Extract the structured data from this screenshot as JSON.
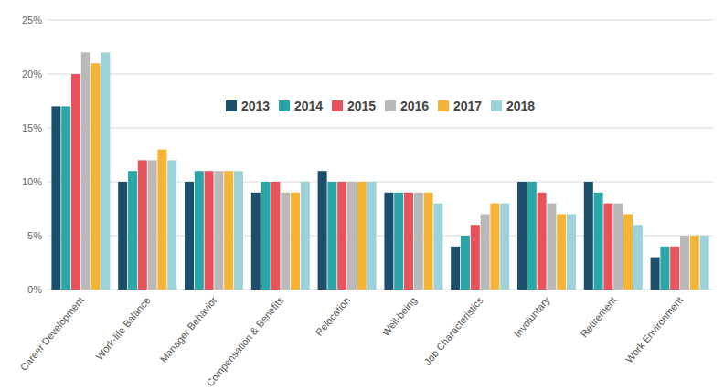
{
  "chart_data": {
    "type": "bar",
    "categories": [
      "Career Development",
      "Work-life Balance",
      "Manager Behavior",
      "Compensation & Benefits",
      "Relocation",
      "Well-being",
      "Job Characteristics",
      "Involuntary",
      "Retirement",
      "Work Environment"
    ],
    "series": [
      {
        "name": "2013",
        "color": "#1b4f6b",
        "values": [
          17,
          10,
          10,
          9,
          11,
          9,
          4,
          10,
          10,
          3
        ]
      },
      {
        "name": "2014",
        "color": "#2aa6a8",
        "values": [
          17,
          11,
          11,
          10,
          10,
          9,
          5,
          10,
          9,
          4
        ]
      },
      {
        "name": "2015",
        "color": "#e8525a",
        "values": [
          20,
          12,
          11,
          10,
          10,
          9,
          6,
          9,
          8,
          4
        ]
      },
      {
        "name": "2016",
        "color": "#b9b9b9",
        "values": [
          22,
          12,
          11,
          9,
          10,
          9,
          7,
          8,
          8,
          5
        ]
      },
      {
        "name": "2017",
        "color": "#f6b436",
        "values": [
          21,
          13,
          11,
          9,
          10,
          9,
          8,
          7,
          7,
          5
        ]
      },
      {
        "name": "2018",
        "color": "#9ed2da",
        "values": [
          22,
          12,
          11,
          10,
          10,
          8,
          8,
          7,
          6,
          5
        ]
      }
    ],
    "ylim": [
      0,
      25
    ],
    "yticks": [
      {
        "value": 0,
        "label": "0%"
      },
      {
        "value": 5,
        "label": "5%"
      },
      {
        "value": 10,
        "label": "10%"
      },
      {
        "value": 15,
        "label": "15%"
      },
      {
        "value": 20,
        "label": "20%"
      },
      {
        "value": 25,
        "label": "25%"
      }
    ],
    "grid": true,
    "legend": "top"
  }
}
